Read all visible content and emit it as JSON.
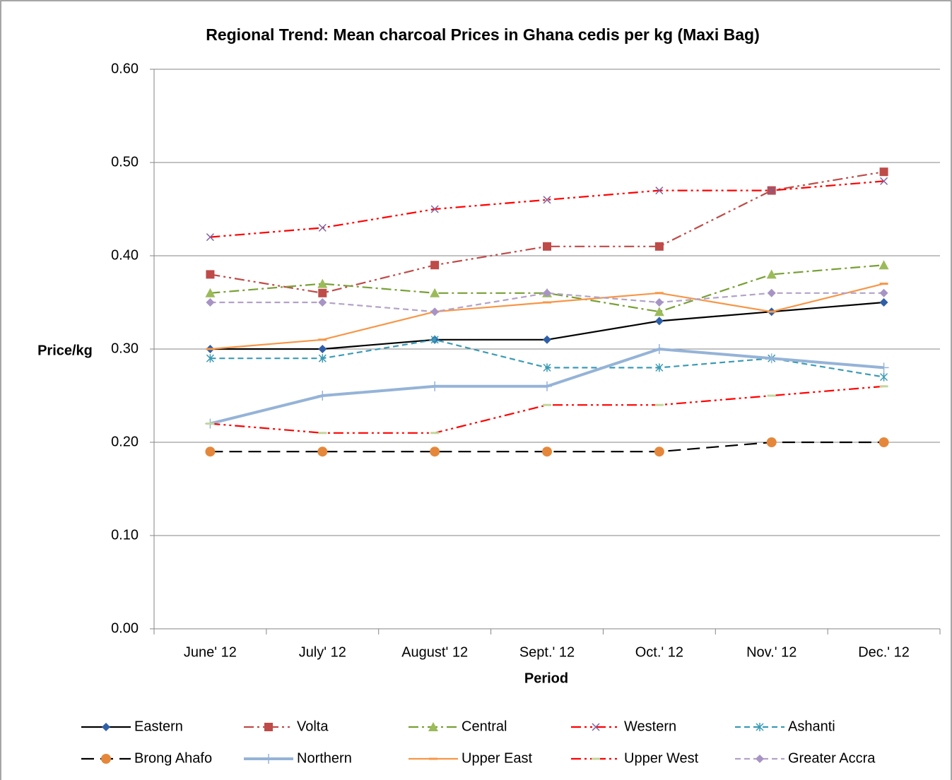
{
  "chart_data": {
    "type": "line",
    "title": "Regional Trend: Mean charcoal Prices in Ghana cedis per kg (Maxi Bag)",
    "xlabel": "Period",
    "ylabel": "Price/kg",
    "categories": [
      "June' 12",
      "July' 12",
      "August' 12",
      "Sept.' 12",
      "Oct.' 12",
      "Nov.' 12",
      "Dec.' 12"
    ],
    "ylim": [
      0,
      0.6
    ],
    "yticks": [
      {
        "value": 0,
        "label": "0.00"
      },
      {
        "value": 0.1,
        "label": "0.10"
      },
      {
        "value": 0.2,
        "label": "0.20"
      },
      {
        "value": 0.3,
        "label": "0.30"
      },
      {
        "value": 0.4,
        "label": "0.40"
      },
      {
        "value": 0.5,
        "label": "0.50"
      },
      {
        "value": 0.6,
        "label": "0.60"
      }
    ],
    "grid": true,
    "legend": "bottom",
    "series": [
      {
        "name": "Eastern",
        "color": "#000000",
        "marker_color": "#2f5fa7",
        "marker": "diamond",
        "dash": "solid",
        "values": [
          0.3,
          0.3,
          0.31,
          0.31,
          0.33,
          0.34,
          0.35
        ]
      },
      {
        "name": "Volta",
        "color": "#be4b48",
        "marker_color": "#be4b48",
        "marker": "square",
        "dash": "dashdotdot",
        "values": [
          0.38,
          0.36,
          0.39,
          0.41,
          0.41,
          0.47,
          0.49
        ]
      },
      {
        "name": "Central",
        "color": "#77a035",
        "marker_color": "#9bbb59",
        "marker": "triangle",
        "dash": "dashdot",
        "values": [
          0.36,
          0.37,
          0.36,
          0.36,
          0.34,
          0.38,
          0.39
        ]
      },
      {
        "name": "Western",
        "color": "#ff0000",
        "marker_color": "#7e60a0",
        "marker": "x",
        "dash": "dashdotdot",
        "values": [
          0.42,
          0.43,
          0.45,
          0.46,
          0.47,
          0.47,
          0.48
        ]
      },
      {
        "name": "Ashanti",
        "color": "#3b9bb5",
        "marker_color": "#3b9bb5",
        "marker": "star",
        "dash": "dash",
        "values": [
          0.29,
          0.29,
          0.31,
          0.28,
          0.28,
          0.29,
          0.27
        ]
      },
      {
        "name": "Brong Ahafo",
        "color": "#000000",
        "marker_color": "#e5873a",
        "marker": "circle",
        "dash": "longdash",
        "values": [
          0.19,
          0.19,
          0.19,
          0.19,
          0.19,
          0.2,
          0.2
        ]
      },
      {
        "name": "Northern",
        "color": "#95b3d7",
        "marker_color": "#95b3d7",
        "marker": "plus",
        "dash": "thick",
        "values": [
          0.22,
          0.25,
          0.26,
          0.26,
          0.3,
          0.29,
          0.28
        ]
      },
      {
        "name": "Upper East",
        "color": "#f79646",
        "marker_color": "#f79646",
        "marker": "dashmark",
        "dash": "solid",
        "values": [
          0.3,
          0.31,
          0.34,
          0.35,
          0.36,
          0.34,
          0.37
        ]
      },
      {
        "name": "Upper West",
        "color": "#ff0000",
        "marker_color": "#c3d69b",
        "marker": "dashmark",
        "dash": "dashdotdot",
        "values": [
          0.22,
          0.21,
          0.21,
          0.24,
          0.24,
          0.25,
          0.26
        ]
      },
      {
        "name": "Greater Accra",
        "color": "#b3a2c7",
        "marker_color": "#a794c4",
        "marker": "diamond",
        "dash": "dash",
        "values": [
          0.35,
          0.35,
          0.34,
          0.36,
          0.35,
          0.36,
          0.36
        ]
      }
    ]
  }
}
